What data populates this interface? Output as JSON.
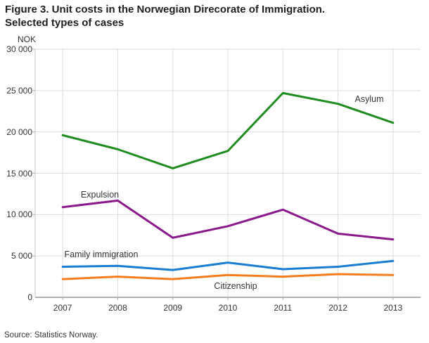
{
  "title": "Figure 3. Unit costs in the Norwegian Direcorate of Immigration.",
  "subtitle": "Selected types of cases",
  "y_axis_unit": "NOK",
  "source": "Source: Statistics Norway.",
  "colors": {
    "asylum": "#1e8c1e",
    "expulsion": "#8b198b",
    "family_immigration": "#197dd2",
    "citizenship": "#f57d1e",
    "gridline": "#dcdcdc",
    "axis_line": "#b0b0b0",
    "text": "#333333"
  },
  "chart_data": {
    "type": "line",
    "title": "Figure 3. Unit costs in the Norwegian Direcorate of Immigration. Selected types of cases",
    "xlabel": "",
    "ylabel": "NOK",
    "ylim": [
      0,
      30000
    ],
    "ytick_step": 5000,
    "grid": true,
    "legend_position": "inline-labels",
    "x": [
      "2007",
      "2008",
      "2009",
      "2010",
      "2011",
      "2012",
      "2013"
    ],
    "y_tick_labels": [
      "0",
      "5 000",
      "10 000",
      "15 000",
      "20 000",
      "25 000",
      "30 000"
    ],
    "series": [
      {
        "name": "Asylum",
        "color": "#1e8c1e",
        "values": [
          19600,
          17900,
          15600,
          17700,
          24700,
          23400,
          21100
        ]
      },
      {
        "name": "Expulsion",
        "color": "#8b198b",
        "values": [
          10900,
          11700,
          7200,
          8600,
          10600,
          7700,
          7000
        ]
      },
      {
        "name": "Family immigration",
        "color": "#197dd2",
        "values": [
          3700,
          3800,
          3300,
          4200,
          3400,
          3700,
          4400
        ]
      },
      {
        "name": "Citizenship",
        "color": "#f57d1e",
        "values": [
          2200,
          2500,
          2200,
          2700,
          2500,
          2800,
          2700
        ]
      }
    ]
  }
}
